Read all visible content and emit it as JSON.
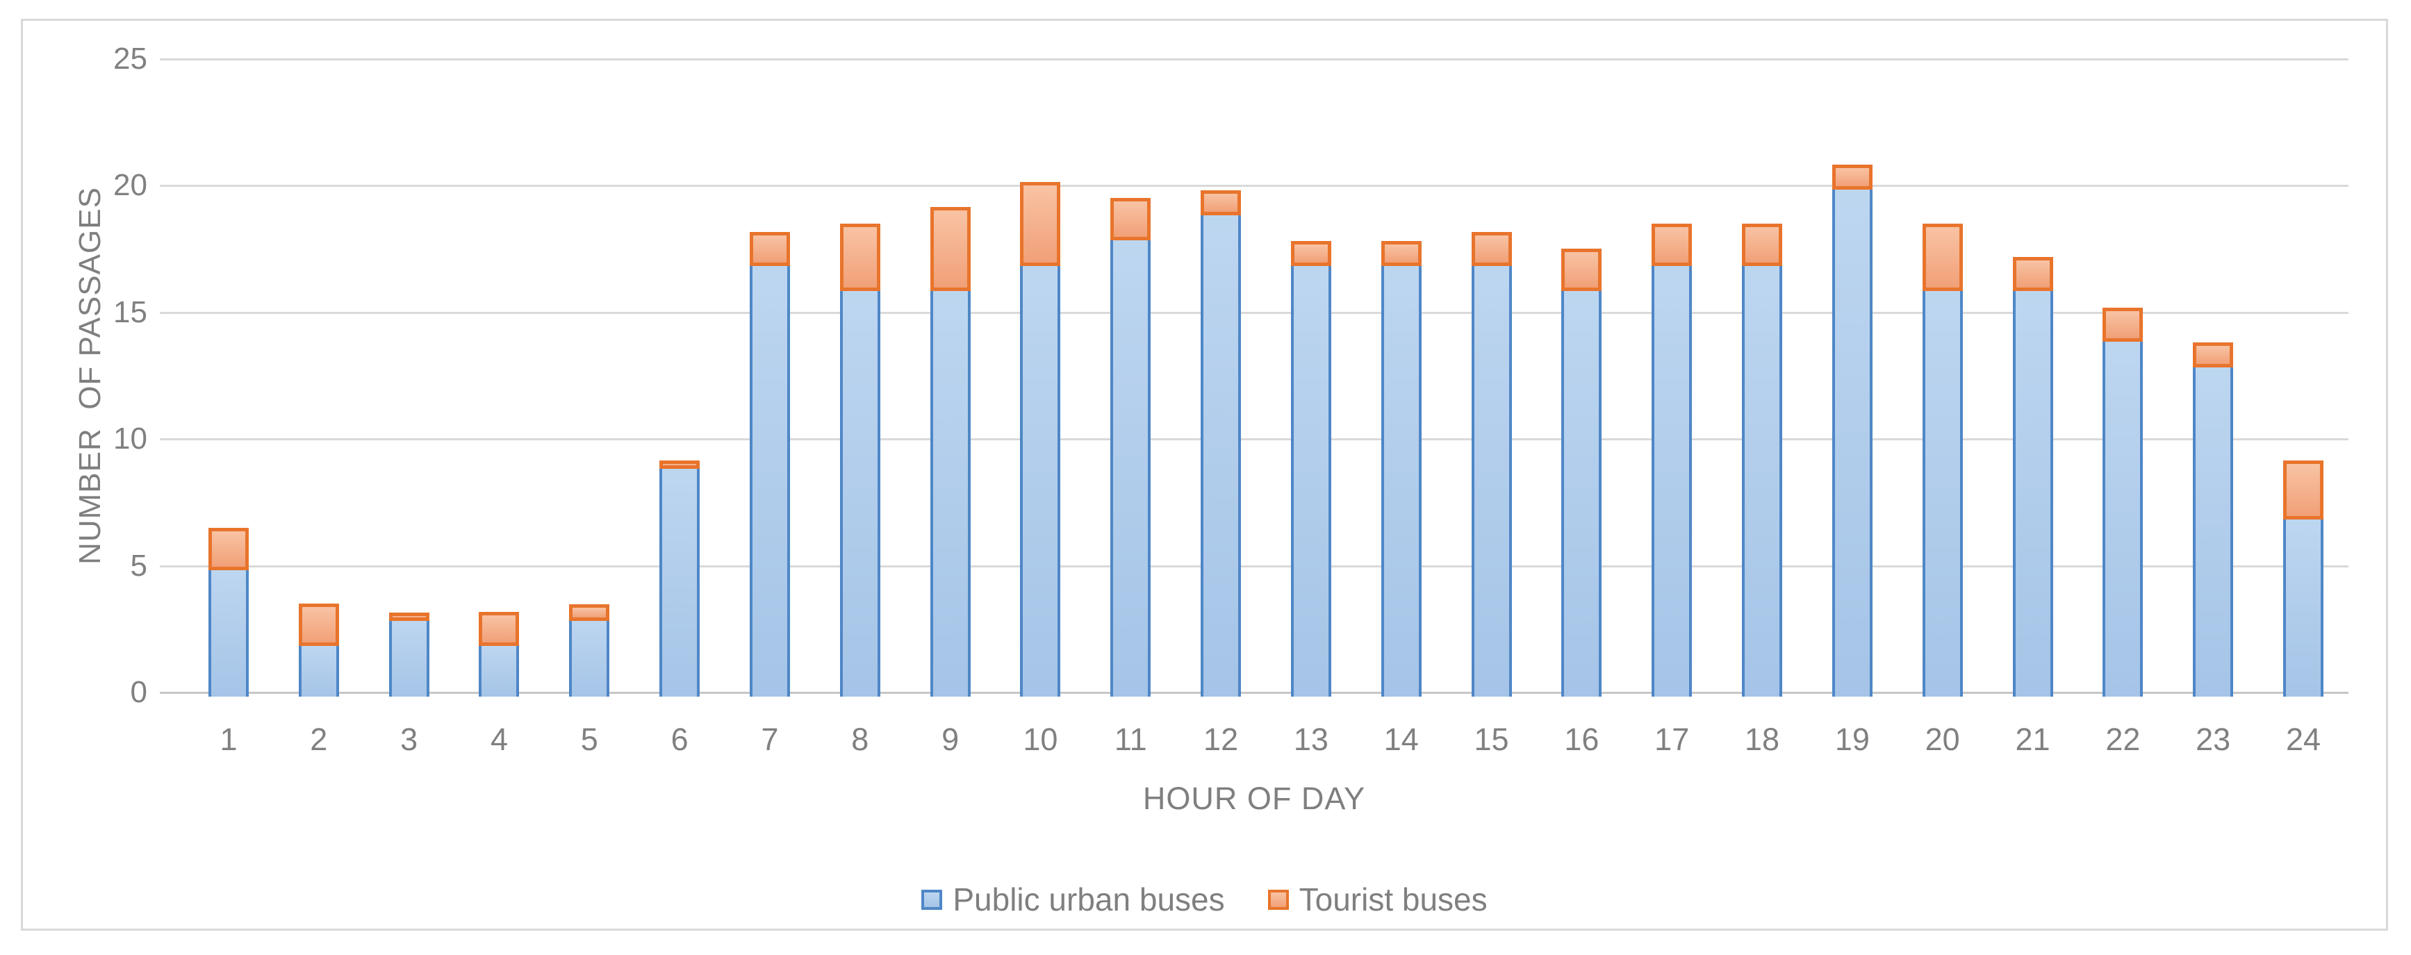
{
  "chart_data": {
    "type": "bar",
    "stacked": true,
    "title": "",
    "xlabel": "HOUR OF DAY",
    "ylabel": "NUMBER  OF PASSAGES",
    "categories": [
      "1",
      "2",
      "3",
      "4",
      "5",
      "6",
      "7",
      "8",
      "9",
      "10",
      "11",
      "12",
      "13",
      "14",
      "15",
      "16",
      "17",
      "18",
      "19",
      "20",
      "21",
      "22",
      "23",
      "24"
    ],
    "series": [
      {
        "name": "Public urban buses",
        "fill_top": "#BDD6F0",
        "fill_bottom": "#A5C4E7",
        "border": "#4F87C7",
        "values": [
          5,
          2,
          3,
          2,
          3,
          9,
          17,
          16,
          16,
          17,
          18,
          19,
          17,
          17,
          17,
          16,
          17,
          17,
          20,
          16,
          16,
          14,
          13,
          7
        ]
      },
      {
        "name": "Tourist buses",
        "fill_top": "#F8C3A4",
        "fill_bottom": "#F1A077",
        "border": "#E8742C",
        "values": [
          1.67,
          1.67,
          0.33,
          1.33,
          0.67,
          0.33,
          1.33,
          2.67,
          3.33,
          3.33,
          1.67,
          1,
          1,
          1,
          1.33,
          1.67,
          1.67,
          1.67,
          1,
          2.67,
          1.33,
          1.33,
          1,
          2.33
        ]
      }
    ],
    "ylim": [
      0,
      25
    ],
    "yticks": [
      0,
      5,
      10,
      15,
      20,
      25
    ],
    "grid": true,
    "legend_position": "bottom"
  },
  "colors": {
    "background": "#FFFFFF",
    "frame_border": "#D9D9D9",
    "gridline": "#D9D9D9",
    "axis_line": "#C6C6C6",
    "tick_label": "#808080",
    "axis_title": "#7F7F7F",
    "legend_text": "#7F7F7F"
  }
}
